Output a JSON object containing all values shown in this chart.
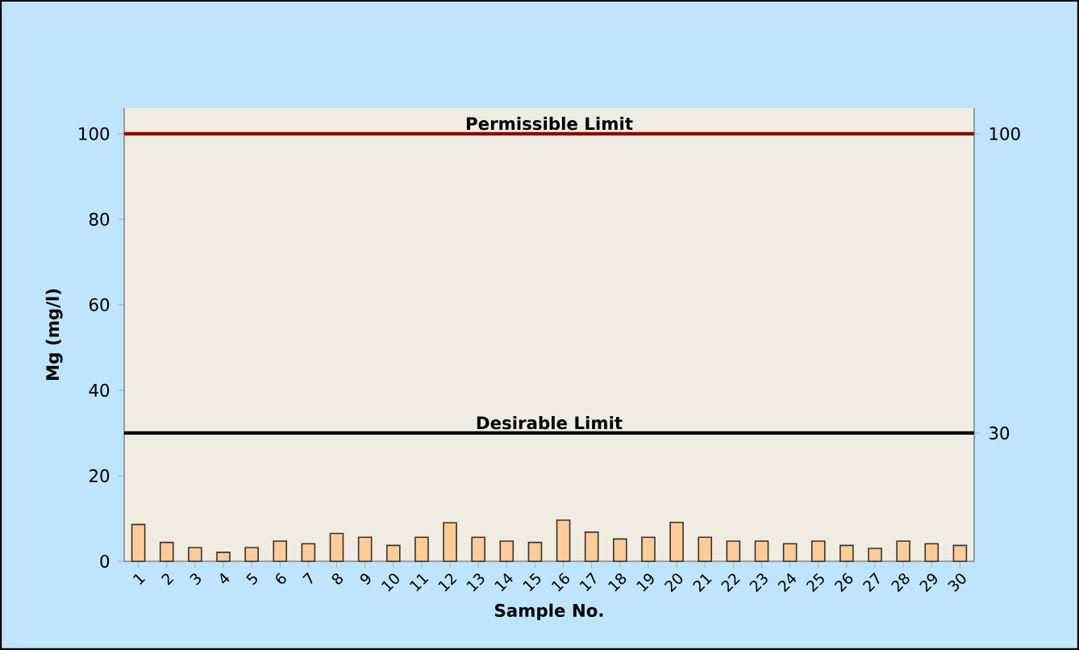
{
  "chart_data": {
    "type": "bar",
    "xlabel": "Sample No.",
    "ylabel": "Mg (mg/l)",
    "categories": [
      "1",
      "2",
      "3",
      "4",
      "5",
      "6",
      "7",
      "8",
      "9",
      "10",
      "11",
      "12",
      "13",
      "14",
      "15",
      "16",
      "17",
      "18",
      "19",
      "20",
      "21",
      "22",
      "23",
      "24",
      "25",
      "26",
      "27",
      "28",
      "29",
      "30"
    ],
    "values": [
      8.6,
      4.4,
      3.2,
      2.1,
      3.2,
      4.7,
      4.1,
      6.5,
      5.6,
      3.7,
      5.6,
      9.0,
      5.6,
      4.7,
      4.4,
      9.6,
      6.8,
      5.2,
      5.6,
      9.1,
      5.6,
      4.7,
      4.7,
      4.1,
      4.7,
      3.7,
      3.0,
      4.7,
      4.1,
      3.7
    ],
    "color": "#ffcc99",
    "ylim": [
      0,
      106
    ],
    "yticks": [
      0,
      20,
      40,
      60,
      80,
      100
    ],
    "y2lim": [
      0,
      106
    ],
    "y2ticks": [
      30,
      100
    ],
    "ref_lines": [
      {
        "axis": "y",
        "value": 100,
        "label": "Permissible Limit",
        "color": "#8b0000"
      },
      {
        "axis": "y",
        "value": 30,
        "label": "Desirable Limit",
        "color": "#000000"
      }
    ],
    "grid": false
  }
}
